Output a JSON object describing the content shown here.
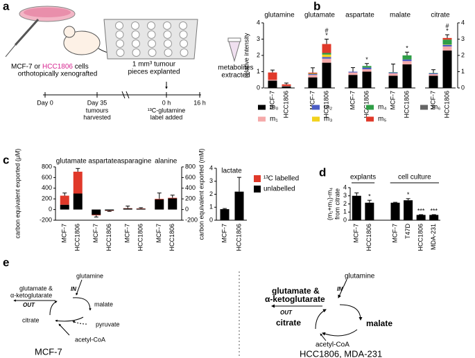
{
  "panel_labels": [
    "a",
    "b",
    "c",
    "d",
    "e"
  ],
  "diagram_a": {
    "xenograft": {
      "cell_line_1": "MCF-7",
      "connector": "or",
      "cell_line_2": "HCC1806",
      "suffix": "cells",
      "line_2": "orthotopically xenografted"
    },
    "explant": [
      "1 mm³ tumour",
      "pieces explanted"
    ],
    "extract": [
      "metabolites",
      "extracted"
    ],
    "timeline": [
      {
        "label": "Day 0"
      },
      {
        "label": "Day 35",
        "note": [
          "tumours",
          "harvested"
        ]
      },
      {
        "label": "0 h",
        "note": [
          "¹³C-glutamine",
          "label added"
        ]
      },
      {
        "label": "16 h"
      }
    ]
  },
  "chart_data": [
    {
      "type": "bar",
      "stacked": true,
      "ylabel": "relative intensity",
      "groups": [
        "glutamine",
        "glutamate",
        "aspartate",
        "malate",
        "citrate"
      ],
      "categories": [
        "MCF-7",
        "HCC1806",
        "MCF-7",
        "HCC1806",
        "MCF-7",
        "HCC1806",
        "MCF-7",
        "HCC1806",
        "MCF-7",
        "HCC1806"
      ],
      "category_colors": [
        "#000000",
        "#d6248f",
        "#000000",
        "#d6248f",
        "#000000",
        "#d6248f",
        "#000000",
        "#d6248f",
        "#000000",
        "#d6248f"
      ],
      "series": [
        {
          "name": "m₀",
          "color": "#000000",
          "values": [
            0.45,
            0.1,
            0.65,
            1.55,
            0.8,
            1.0,
            0.75,
            1.45,
            0.75,
            2.3
          ]
        },
        {
          "name": "m₁",
          "color": "#f5a9a9",
          "values": [
            0.05,
            0.02,
            0.15,
            0.25,
            0.15,
            0.15,
            0.15,
            0.2,
            0.1,
            0.25
          ]
        },
        {
          "name": "m₂",
          "color": "#4b5cc4",
          "values": [
            0,
            0,
            0.05,
            0.1,
            0.05,
            0.1,
            0.05,
            0.1,
            0.05,
            0.1
          ]
        },
        {
          "name": "m₃",
          "color": "#f2d21c",
          "values": [
            0,
            0,
            0.02,
            0.15,
            0,
            0,
            0,
            0,
            0,
            0.02
          ]
        },
        {
          "name": "m₄",
          "color": "#2f9e46",
          "values": [
            0,
            0,
            0.02,
            0.1,
            0,
            0.1,
            0.02,
            0.25,
            0.02,
            0.3
          ]
        },
        {
          "name": "m₅",
          "color": "#e0392a",
          "values": [
            0.45,
            0.1,
            0.05,
            0.55,
            0,
            0,
            0,
            0,
            0,
            0.1
          ]
        },
        {
          "name": "m₆",
          "color": "#666666",
          "values": [
            0,
            0,
            0,
            0,
            0,
            0,
            0,
            0,
            0,
            0
          ]
        }
      ],
      "errors": [
        0.15,
        0.08,
        0.3,
        0.3,
        0.25,
        0.15,
        0.5,
        0.2,
        0.2,
        0.2
      ],
      "sig_labels": [
        null,
        null,
        null,
        [
          "*",
          "#"
        ],
        null,
        [
          "*"
        ],
        null,
        [
          "*"
        ],
        null,
        [
          "*",
          "#"
        ]
      ],
      "ylim": [
        0,
        4
      ],
      "yticks": [
        0,
        1,
        2,
        3,
        4
      ],
      "y2lim": [
        0,
        4
      ],
      "y2ticks": [
        0,
        1,
        2,
        3,
        4
      ]
    },
    {
      "type": "bar",
      "stacked": true,
      "ylabel": "carbon equivalent exported (μM)",
      "legend_order": "reverse",
      "groups": [
        "glutamate",
        "aspartate",
        "asparagine",
        "alanine"
      ],
      "categories": [
        "MCF-7",
        "HCC1806",
        "MCF-7",
        "HCC1806",
        "MCF-7",
        "HCC1806",
        "MCF-7",
        "HCC1806"
      ],
      "category_colors": [
        "#000000",
        "#d6248f",
        "#000000",
        "#d6248f",
        "#000000",
        "#d6248f",
        "#000000",
        "#d6248f"
      ],
      "series": [
        {
          "name": "unlabelled",
          "color": "#000000",
          "values": [
            90,
            300,
            -100,
            -20,
            20,
            15,
            190,
            210
          ]
        },
        {
          "name": "¹³C labelled",
          "color": "#e0392a",
          "values": [
            170,
            410,
            -10,
            -5,
            5,
            5,
            10,
            10
          ]
        }
      ],
      "errors": [
        50,
        60,
        30,
        10,
        40,
        15,
        110,
        50
      ],
      "ylim": [
        -200,
        800
      ],
      "yticks": [
        -200,
        0,
        200,
        400,
        600,
        800
      ],
      "y2lim": [
        -200,
        800
      ],
      "y2ticks": [
        -200,
        0,
        200,
        400,
        600,
        800
      ]
    },
    {
      "type": "bar",
      "title": "lactate",
      "ylabel": "carbon equivalent exported (mM)",
      "categories": [
        "MCF-7",
        "HCC1806"
      ],
      "category_colors": [
        "#000000",
        "#d6248f"
      ],
      "values": [
        0.85,
        2.2
      ],
      "errors": [
        0.05,
        1.1
      ],
      "color": "#000000",
      "ylim": [
        0,
        4
      ],
      "yticks": [
        0,
        1,
        2,
        3,
        4
      ]
    },
    {
      "type": "bar",
      "ylabel": "(m₁+m₃)-m₄",
      "ylabel_2": "from citrate",
      "color": "#000000",
      "groups": [
        {
          "name": "explants",
          "categories": [
            "MCF-7",
            "HCC1806"
          ],
          "category_colors": [
            "#000000",
            "#d6248f"
          ],
          "values": [
            3.0,
            2.15
          ],
          "errors": [
            0.35,
            0.3
          ],
          "sig_labels": [
            null,
            "*"
          ]
        },
        {
          "name": "cell culture",
          "categories": [
            "MCF-7",
            "T47D",
            "HCC1806",
            "MDA-231"
          ],
          "category_colors": [
            "#000000",
            "#000000",
            "#d6248f",
            "#d6248f"
          ],
          "values": [
            2.15,
            2.45,
            0.65,
            0.65
          ],
          "errors": [
            0.05,
            0.2,
            0.03,
            0.03
          ],
          "sig_labels": [
            null,
            "*",
            "***",
            "***"
          ]
        }
      ],
      "ylim": [
        0,
        4
      ],
      "yticks": [
        0,
        1,
        2,
        3,
        4
      ]
    }
  ],
  "diagram_e": {
    "left": {
      "glutamine": "glutamine",
      "in": "IN",
      "out": "OUT",
      "glutamate": [
        "glutamate &",
        "α-ketoglutarate"
      ],
      "malate": "malate",
      "citrate": "citrate",
      "pyruvate": "pyruvate",
      "acetyl_coa": "acetyl-CoA",
      "caption": "MCF-7"
    },
    "right": {
      "glutamine": "glutamine",
      "in": "IN",
      "out": "OUT",
      "glutamate": [
        "glutamate &",
        "α-ketoglutarate"
      ],
      "malate": "malate",
      "citrate": "citrate",
      "acetyl_coa": "acetyl-CoA",
      "caption": "HCC1806, MDA-231"
    }
  }
}
